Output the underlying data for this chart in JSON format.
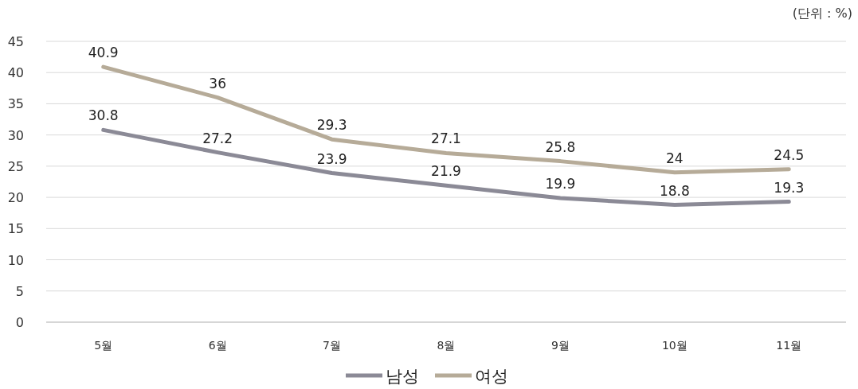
{
  "chart_data": {
    "type": "line",
    "annotations": [
      "(단위 : %)"
    ],
    "categories": [
      "5월",
      "6월",
      "7월",
      "8월",
      "9월",
      "10월",
      "11월"
    ],
    "series": [
      {
        "name": "남성",
        "color": "#8b8a96",
        "values": [
          30.8,
          27.2,
          23.9,
          21.9,
          19.9,
          18.8,
          19.3
        ]
      },
      {
        "name": "여성",
        "color": "#b6ab98",
        "values": [
          40.9,
          36,
          29.3,
          27.1,
          25.8,
          24,
          24.5
        ]
      }
    ],
    "ylim": [
      0,
      45
    ],
    "yticks": [
      0,
      5,
      10,
      15,
      20,
      25,
      30,
      35,
      40,
      45
    ],
    "grid": "y",
    "legend": "bottom",
    "data_labels": true
  }
}
